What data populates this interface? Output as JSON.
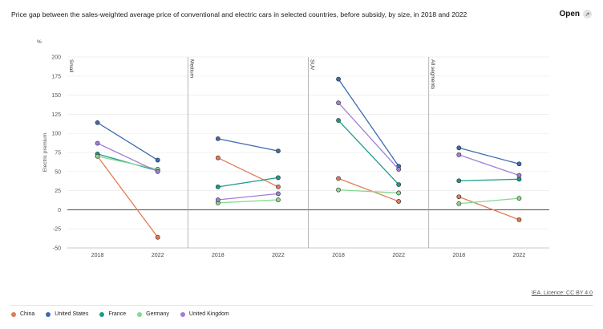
{
  "header": {
    "title": "Price gap between the sales-weighted average price of conventional and electric cars in selected countries, before subsidy, by size, in 2018 and 2022",
    "open_label": "Open"
  },
  "footer": {
    "licence": "IEA. Licence: CC BY 4.0"
  },
  "colors": {
    "China": "#e07b54",
    "United States": "#3c6bb0",
    "France": "#1a9a8a",
    "Germany": "#86d98f",
    "United Kingdom": "#a07fd6"
  },
  "chart_data": {
    "type": "line",
    "title": "Price gap between the sales-weighted average price of conventional and electric cars in selected countries, before subsidy, by size, in 2018 and 2022",
    "unit": "%",
    "ylabel": "Electric premium",
    "ylim": [
      -50,
      200
    ],
    "yticks": [
      -50,
      -25,
      0,
      25,
      50,
      75,
      100,
      125,
      150,
      175,
      200
    ],
    "x": [
      "2018",
      "2022"
    ],
    "legend_position": "bottom-left",
    "panels": [
      {
        "label": "Small",
        "series": [
          {
            "name": "China",
            "values": [
              70,
              -36
            ]
          },
          {
            "name": "United States",
            "values": [
              114,
              65
            ]
          },
          {
            "name": "France",
            "values": [
              73,
              51
            ]
          },
          {
            "name": "Germany",
            "values": [
              70,
              53
            ]
          },
          {
            "name": "United Kingdom",
            "values": [
              87,
              50
            ]
          }
        ]
      },
      {
        "label": "Medium",
        "series": [
          {
            "name": "China",
            "values": [
              68,
              30
            ]
          },
          {
            "name": "United States",
            "values": [
              93,
              77
            ]
          },
          {
            "name": "France",
            "values": [
              30,
              42
            ]
          },
          {
            "name": "Germany",
            "values": [
              9,
              13
            ]
          },
          {
            "name": "United Kingdom",
            "values": [
              13,
              21
            ]
          }
        ]
      },
      {
        "label": "SUV",
        "series": [
          {
            "name": "China",
            "values": [
              41,
              11
            ]
          },
          {
            "name": "United States",
            "values": [
              171,
              57
            ]
          },
          {
            "name": "France",
            "values": [
              117,
              33
            ]
          },
          {
            "name": "Germany",
            "values": [
              26,
              22
            ]
          },
          {
            "name": "United Kingdom",
            "values": [
              140,
              53
            ]
          }
        ]
      },
      {
        "label": "All segments",
        "series": [
          {
            "name": "China",
            "values": [
              17,
              -13
            ]
          },
          {
            "name": "United States",
            "values": [
              81,
              60
            ]
          },
          {
            "name": "France",
            "values": [
              38,
              40
            ]
          },
          {
            "name": "Germany",
            "values": [
              8,
              15
            ]
          },
          {
            "name": "United Kingdom",
            "values": [
              72,
              45
            ]
          }
        ]
      }
    ]
  }
}
